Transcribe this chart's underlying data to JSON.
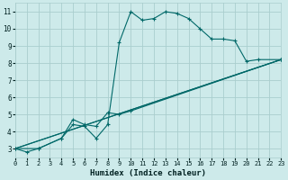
{
  "xlabel": "Humidex (Indice chaleur)",
  "bg_color": "#cdeaea",
  "line_color": "#006868",
  "grid_color": "#aacece",
  "xlim": [
    0,
    23
  ],
  "ylim": [
    2.5,
    11.5
  ],
  "xticks": [
    0,
    1,
    2,
    3,
    4,
    5,
    6,
    7,
    8,
    9,
    10,
    11,
    12,
    13,
    14,
    15,
    16,
    17,
    18,
    19,
    20,
    21,
    22,
    23
  ],
  "yticks": [
    3,
    4,
    5,
    6,
    7,
    8,
    9,
    10,
    11
  ],
  "line1_x": [
    0,
    1,
    2,
    4,
    5,
    6,
    7,
    8,
    9,
    10,
    11,
    12,
    13,
    14,
    15,
    16,
    17,
    18,
    19,
    20,
    21,
    23
  ],
  "line1_y": [
    3.0,
    2.8,
    3.0,
    3.6,
    4.4,
    4.3,
    3.6,
    4.4,
    9.2,
    11.0,
    10.5,
    10.6,
    11.0,
    10.9,
    10.6,
    10.0,
    9.4,
    9.4,
    9.3,
    8.1,
    8.2,
    8.2
  ],
  "line2_x": [
    0,
    2,
    4,
    5,
    6,
    7,
    8,
    9,
    10,
    23
  ],
  "line2_y": [
    3.0,
    3.0,
    3.6,
    4.7,
    4.4,
    4.3,
    5.1,
    5.0,
    5.2,
    8.2
  ],
  "line3_x": [
    0,
    23
  ],
  "line3_y": [
    3.0,
    8.2
  ],
  "line4_x": [
    0,
    23
  ],
  "line4_y": [
    3.0,
    8.2
  ],
  "marker": "+",
  "markersize": 3.5,
  "linewidth": 0.8,
  "tick_fontsize": 5.0,
  "xlabel_fontsize": 6.5
}
